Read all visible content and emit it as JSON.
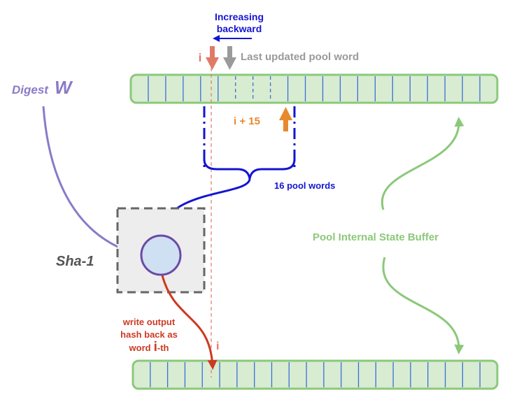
{
  "labels": {
    "increasing_line1": "Increasing",
    "increasing_line2": "backward",
    "i_top": "i",
    "last_updated": "Last updated pool word",
    "digest": "Digest",
    "digest_var": "W",
    "i_plus_15": "i + 15",
    "sixteen_pool_words": "16 pool words",
    "sha1": "Sha-1",
    "pool_internal_state": "Pool Internal State Buffer",
    "write_line1": "write output",
    "write_line2": "hash back as",
    "write_line3_word": "word",
    "write_line3_i": "i",
    "write_line3_suffix": "-th",
    "i_bottom": "i"
  },
  "buffer": {
    "cells": 21,
    "dashed_dividers": [
      6,
      7,
      8
    ]
  },
  "colors": {
    "buffer_fill": "#d8ecd2",
    "buffer_border": "#8cc87a",
    "cell_divider": "#3a6fd8",
    "blue": "#1414d2",
    "salmon": "#e07a68",
    "gray": "#9a9a9a",
    "purple": "#8a7ac8",
    "orange": "#e8892e",
    "red": "#cc3a22",
    "green": "#8cc87a",
    "node_fill": "#cfe0f2",
    "node_border": "#6a4aa8",
    "sha_box_fill": "#ededed",
    "sha_text": "#555555"
  }
}
